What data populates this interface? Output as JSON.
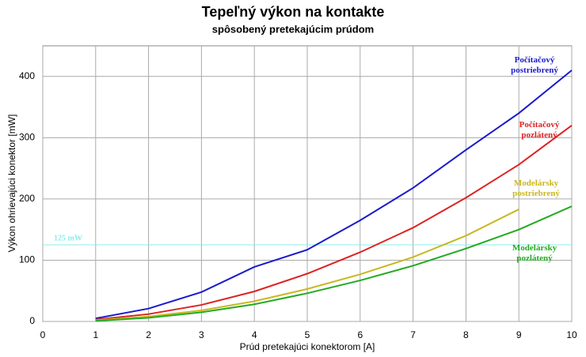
{
  "chart_data": {
    "type": "line",
    "title": "Tepeľný výkon na kontakte",
    "subtitle": "spôsobený pretekajúcim prúdom",
    "x_label": "Prúd pretekajúci konektorom [A]",
    "y_label": "Výkon ohrievajúci konektor [mW]",
    "xlim": [
      0,
      10
    ],
    "xticks": [
      0,
      1,
      2,
      3,
      4,
      5,
      6,
      7,
      8,
      9,
      10
    ],
    "ylim": [
      0,
      450
    ],
    "yticks": [
      0,
      100,
      200,
      300,
      400
    ],
    "grid": true,
    "x": [
      1,
      2,
      3,
      4,
      5,
      6,
      7,
      8,
      9,
      10
    ],
    "series": [
      {
        "name": "Počítačový postriebrený",
        "color": "#1a1acc",
        "values": [
          5,
          21,
          48,
          89,
          117,
          165,
          218,
          280,
          340,
          410
        ]
      },
      {
        "name": "Počítačový pozlátený",
        "color": "#dd2222",
        "values": [
          3,
          12,
          27,
          49,
          78,
          113,
          153,
          202,
          256,
          320
        ]
      },
      {
        "name": "Modelársky postriebrený",
        "color": "#c8b820",
        "values": [
          2,
          8,
          18,
          33,
          53,
          77,
          105,
          140,
          183,
          null
        ]
      },
      {
        "name": "Modelársky pozlátený",
        "color": "#22aa22",
        "values": [
          1,
          6,
          15,
          28,
          46,
          67,
          91,
          119,
          150,
          188
        ]
      }
    ],
    "reference_line": {
      "value": 125,
      "label": "125 mW",
      "color": "#88eeee"
    }
  }
}
